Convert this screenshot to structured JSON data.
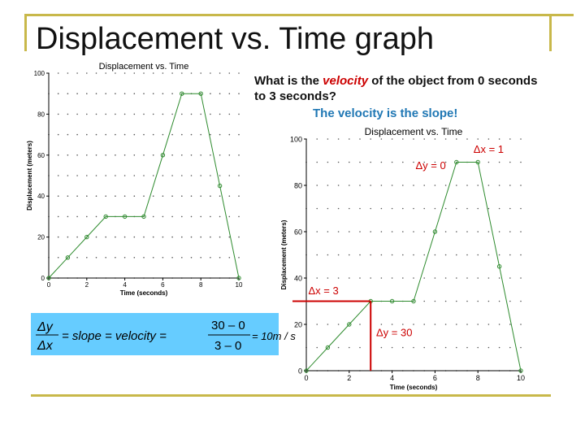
{
  "slide": {
    "title": "Displacement vs. Time graph",
    "question_pre": "What is the ",
    "question_hl": "velocity",
    "question_post": " of the object from 0 seconds to 3 seconds?",
    "answer": "The velocity is the slope!",
    "formula": {
      "dy_num": "Δy",
      "dx_den": "Δx",
      "mid": "= slope = velocity =",
      "num": "30 – 0",
      "den": "3 – 0",
      "result": "= 10m / s"
    },
    "colors": {
      "accent_red": "#cc0000",
      "answer_blue": "#1f77b4",
      "formula_bg": "#66ccff",
      "frame": "#c8b84a",
      "series": "#2e8b2e"
    }
  },
  "chart_data": [
    {
      "type": "line",
      "title": "Displacement vs. Time",
      "xlabel": "Time (seconds)",
      "ylabel": "Displacement (meters)",
      "xlim": [
        0,
        10
      ],
      "ylim": [
        0,
        100
      ],
      "xticks": [
        "0",
        "2",
        "4",
        "6",
        "8",
        "10"
      ],
      "yticks": [
        "0",
        "20",
        "40",
        "60",
        "80",
        "100"
      ],
      "grid": "dotted",
      "x": [
        0,
        1,
        2,
        3,
        4,
        5,
        6,
        7,
        8,
        9,
        10
      ],
      "y": [
        0,
        10,
        20,
        30,
        30,
        30,
        60,
        90,
        90,
        45,
        0
      ]
    },
    {
      "type": "line",
      "title": "Displacement vs. Time",
      "xlabel": "Time (seconds)",
      "ylabel": "Displacement (meters)",
      "xlim": [
        0,
        10
      ],
      "ylim": [
        0,
        100
      ],
      "xticks": [
        "0",
        "2",
        "4",
        "6",
        "8",
        "10"
      ],
      "yticks": [
        "0",
        "20",
        "40",
        "60",
        "80",
        "100"
      ],
      "grid": "dotted",
      "x": [
        0,
        1,
        2,
        3,
        4,
        5,
        6,
        7,
        8,
        9,
        10
      ],
      "y": [
        0,
        10,
        20,
        30,
        30,
        30,
        60,
        90,
        90,
        45,
        0
      ],
      "annotations": [
        {
          "text": "Δx = 1",
          "x0": 7,
          "x1": 8,
          "y": 90
        },
        {
          "text": "Δy = 0",
          "x0": 7,
          "x1": 8,
          "y": 90
        },
        {
          "text": "Δx = 3",
          "x0": 0,
          "x1": 3,
          "y": 30
        },
        {
          "text": "Δy = 30",
          "x": 3,
          "y0": 0,
          "y1": 30
        }
      ]
    }
  ]
}
